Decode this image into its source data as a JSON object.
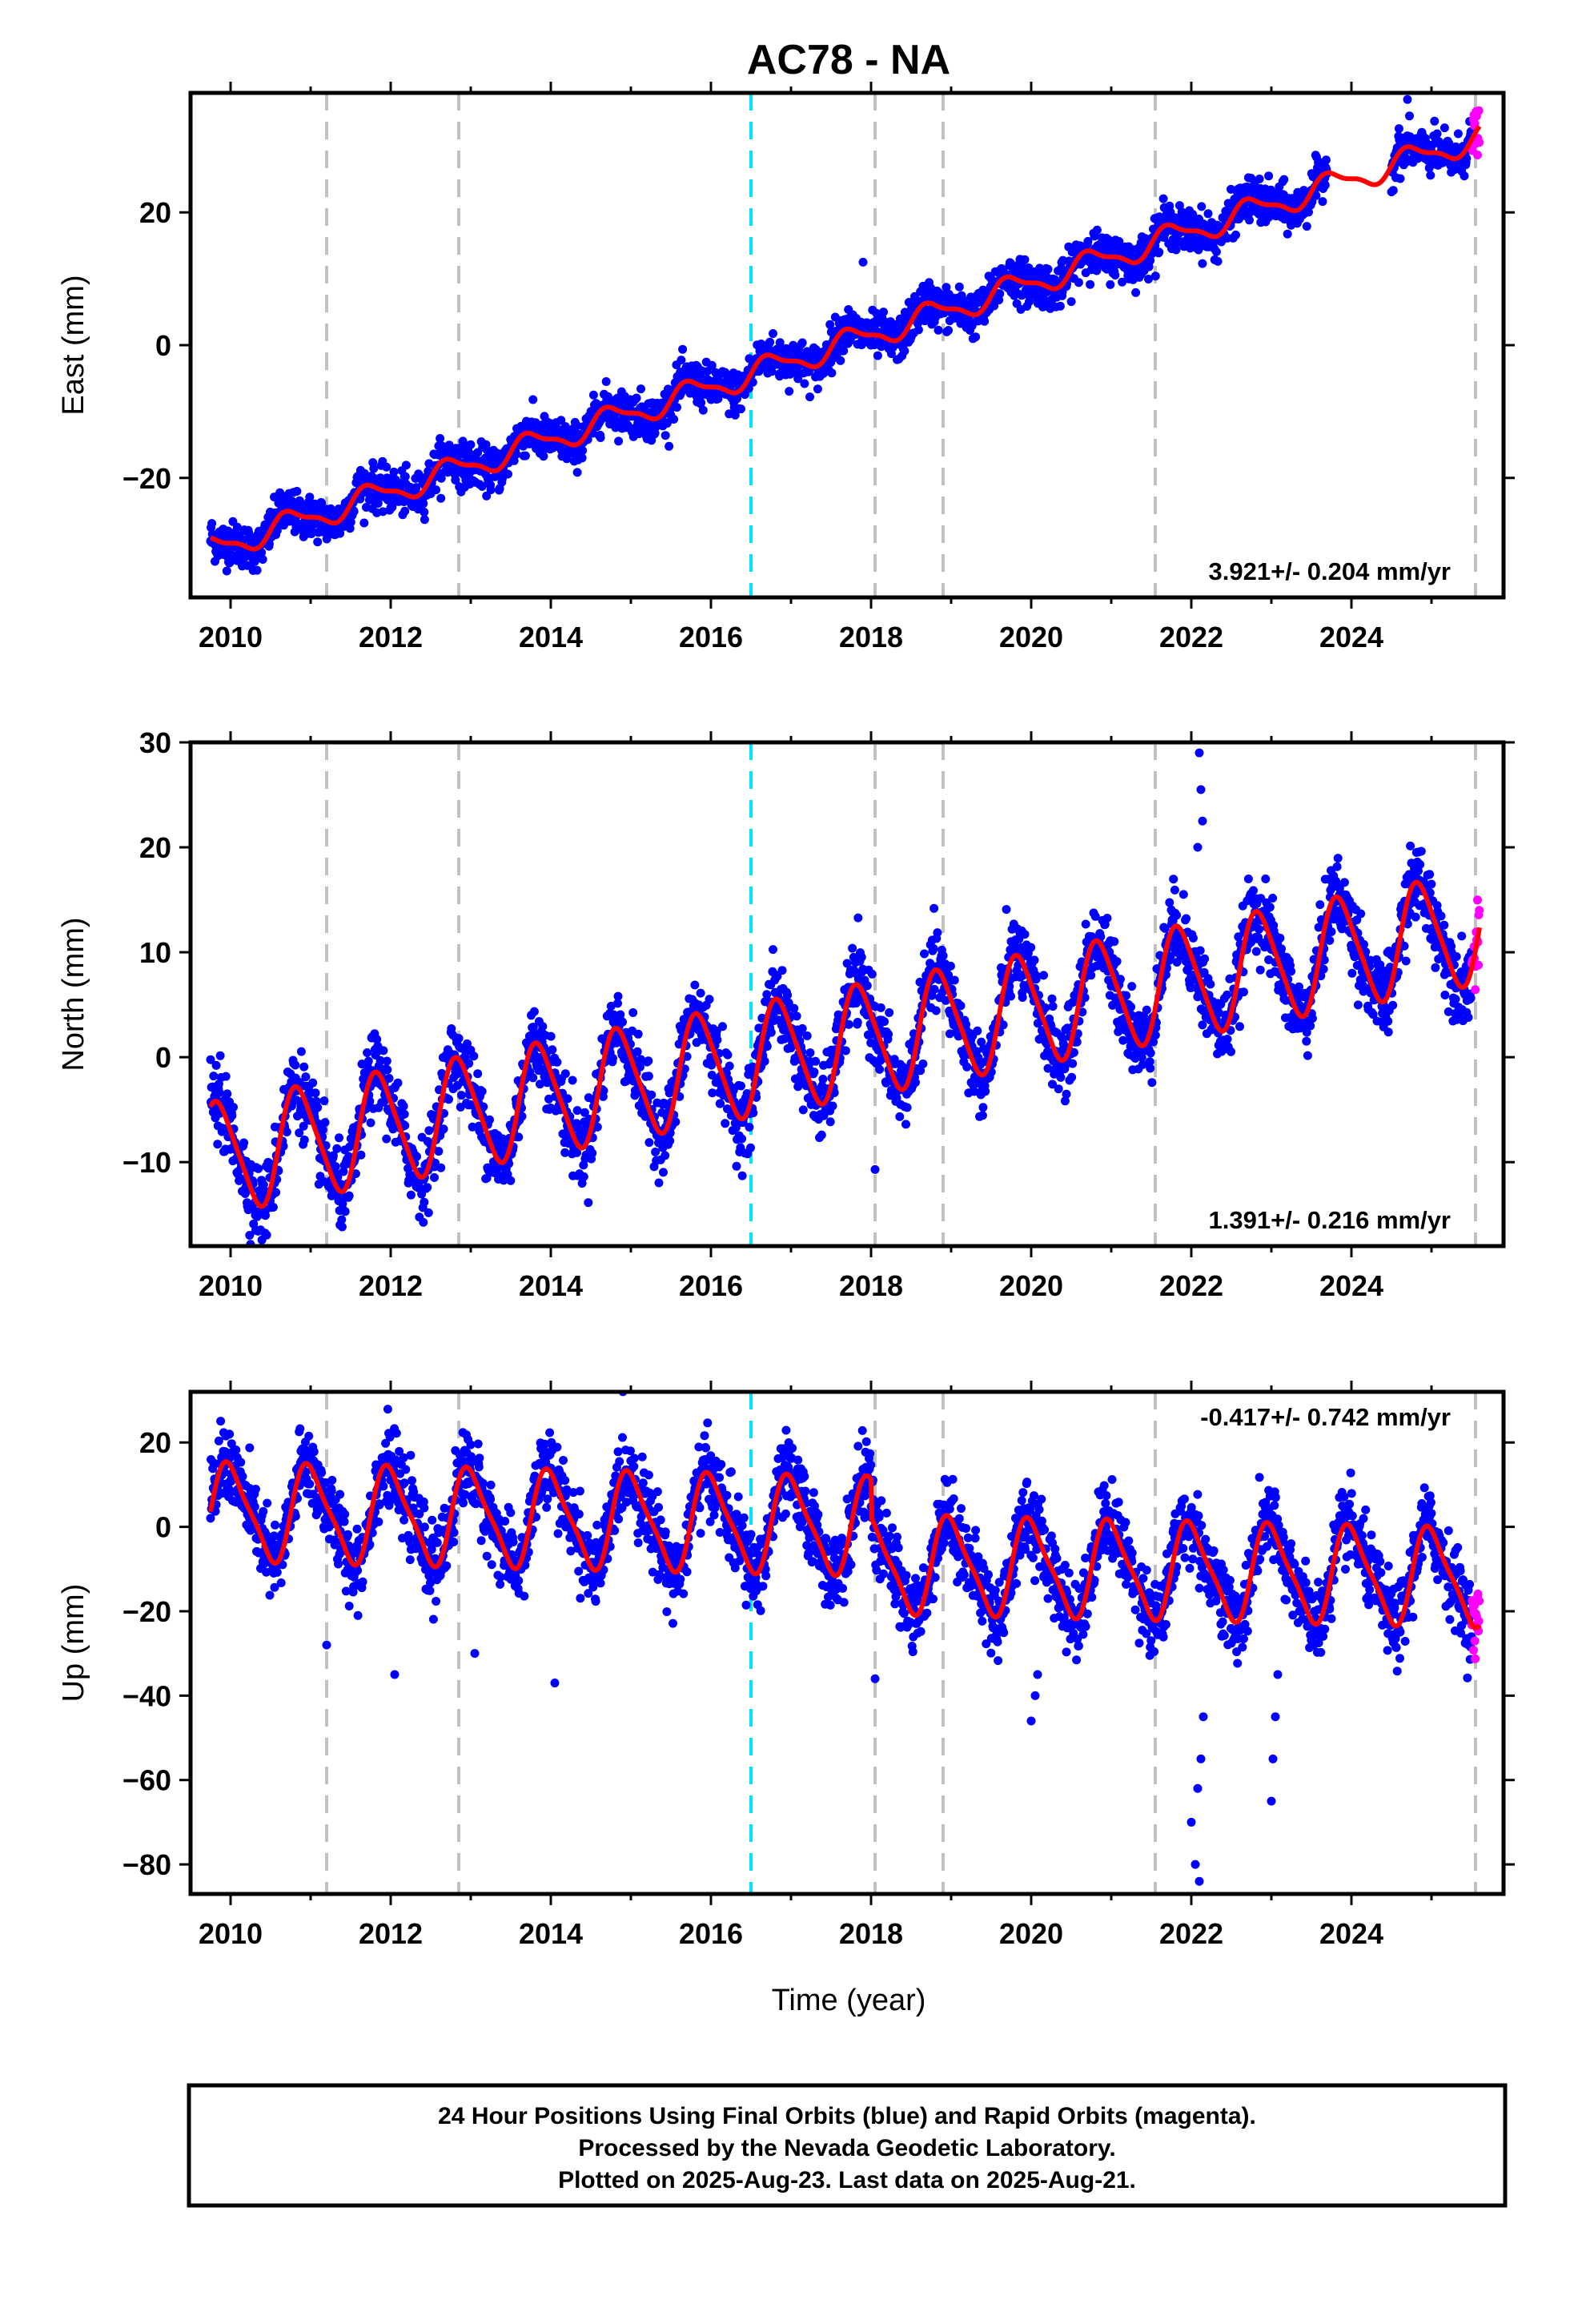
{
  "title": "AC78 - NA",
  "xlabel": "Time (year)",
  "x_ticks": [
    2010,
    2012,
    2014,
    2016,
    2018,
    2020,
    2022,
    2024
  ],
  "caption": [
    "24 Hour Positions Using Final Orbits (blue) and Rapid Orbits (magenta).",
    "Processed by the Nevada Geodetic Laboratory.",
    "Plotted on 2025-Aug-23. Last data on 2025-Aug-21."
  ],
  "colors": {
    "final": "#0000ff",
    "rapid": "#ff00ff",
    "model": "#ff0000",
    "equipment_change": "#c0c0c0",
    "earthquake": "#00e5ff"
  },
  "chart_data": [
    {
      "type": "scatter",
      "panel": "east",
      "ylabel": "East (mm)",
      "xlim": [
        2009.5,
        2025.9
      ],
      "ylim": [
        -38,
        38
      ],
      "y_ticks": [
        -20,
        0,
        20
      ],
      "rate_label": "3.921+/- 0.204 mm/yr",
      "rate_position": "bottom-right",
      "trend": {
        "rate": 3.921,
        "intercept": -6.3,
        "ref_year": 2016.0
      },
      "seasonal": {
        "annual_amp": 1.8,
        "annual_phase": 0.5,
        "semiannual_amp": 0.6
      },
      "noise": 1.6,
      "offsets": [],
      "outliers": [
        {
          "x": 2017.9,
          "y": 12.5
        },
        {
          "x": 2024.7,
          "y": 37
        }
      ],
      "data_start": 2009.75,
      "data_end": 2025.6,
      "rapid_start": 2025.5,
      "model_gaps": [
        [
          2023.7,
          2024.5
        ]
      ]
    },
    {
      "type": "scatter",
      "panel": "north",
      "ylabel": "North (mm)",
      "xlim": [
        2009.5,
        2025.9
      ],
      "ylim": [
        -18,
        30
      ],
      "y_ticks": [
        -10,
        0,
        10,
        20,
        30
      ],
      "rate_label": "1.391+/- 0.216 mm/yr",
      "rate_position": "bottom-right",
      "trend": {
        "rate": 1.391,
        "intercept": -1.0,
        "ref_year": 2016.0
      },
      "seasonal": {
        "annual_amp": 5.2,
        "annual_phase": 0.6,
        "semiannual_amp": 0.8
      },
      "noise": 1.8,
      "offsets": [],
      "outliers": [
        {
          "x": 2022.1,
          "y": 29
        },
        {
          "x": 2022.12,
          "y": 25.5
        },
        {
          "x": 2022.14,
          "y": 22.5
        },
        {
          "x": 2022.08,
          "y": 20
        },
        {
          "x": 2018.05,
          "y": -10.7
        },
        {
          "x": 2024.75,
          "y": 18.5
        }
      ],
      "data_start": 2009.75,
      "data_end": 2025.6,
      "rapid_start": 2025.5,
      "model_gaps": []
    },
    {
      "type": "scatter",
      "panel": "up",
      "ylabel": "Up (mm)",
      "xlim": [
        2009.5,
        2025.9
      ],
      "ylim": [
        -87,
        32
      ],
      "y_ticks": [
        -80,
        -60,
        -40,
        -20,
        0,
        20
      ],
      "rate_label": "-0.417+/- 0.742 mm/yr",
      "rate_position": "top-right",
      "trend": {
        "rate": -0.417,
        "intercept": 1.0,
        "ref_year": 2016.0
      },
      "seasonal": {
        "annual_amp": 11.0,
        "annual_phase": 0.75,
        "semiannual_amp": 2.5
      },
      "noise": 4.5,
      "offsets": [
        {
          "x": 2018.0,
          "dy": -9
        }
      ],
      "outliers": [
        {
          "x": 2022.05,
          "y": -80
        },
        {
          "x": 2022.1,
          "y": -84
        },
        {
          "x": 2022.0,
          "y": -70
        },
        {
          "x": 2022.08,
          "y": -62
        },
        {
          "x": 2022.12,
          "y": -55
        },
        {
          "x": 2022.15,
          "y": -45
        },
        {
          "x": 2023.0,
          "y": -65
        },
        {
          "x": 2023.02,
          "y": -55
        },
        {
          "x": 2023.05,
          "y": -45
        },
        {
          "x": 2023.08,
          "y": -35
        },
        {
          "x": 2020.0,
          "y": -46
        },
        {
          "x": 2020.05,
          "y": -40
        },
        {
          "x": 2020.08,
          "y": -35
        },
        {
          "x": 2012.05,
          "y": -35
        },
        {
          "x": 2014.05,
          "y": -37
        },
        {
          "x": 2013.05,
          "y": -30
        },
        {
          "x": 2011.2,
          "y": -28
        },
        {
          "x": 2018.05,
          "y": -36
        }
      ],
      "data_start": 2009.75,
      "data_end": 2025.6,
      "rapid_start": 2025.5,
      "model_gaps": []
    }
  ],
  "vertical_lines": {
    "equipment_change": [
      2011.2,
      2012.85,
      2018.05,
      2018.9,
      2021.55,
      2025.55
    ],
    "earthquake": [
      2016.5
    ]
  }
}
